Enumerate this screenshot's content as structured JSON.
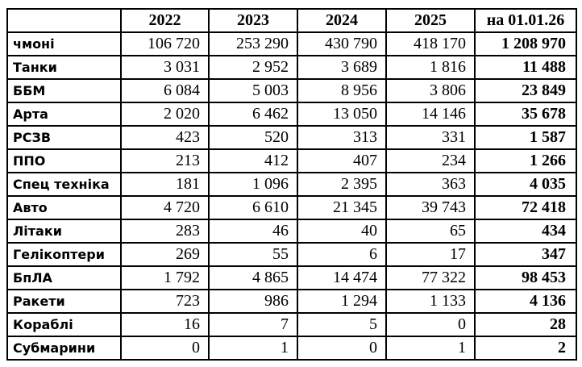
{
  "page": {
    "background_color": "#ffffff",
    "border_color": "#000000",
    "text_color": "#000000"
  },
  "table": {
    "header": {
      "corner": "",
      "columns": [
        "2022",
        "2023",
        "2024",
        "2025",
        "на 01.01.26"
      ]
    },
    "rows": [
      {
        "label": "чмоні",
        "values": [
          "106 720",
          "253 290",
          "430 790",
          "418 170",
          "1 208 970"
        ]
      },
      {
        "label": "Танки",
        "values": [
          "3 031",
          "2 952",
          "3 689",
          "1 816",
          "11 488"
        ]
      },
      {
        "label": "ББМ",
        "values": [
          "6 084",
          "5 003",
          "8 956",
          "3 806",
          "23 849"
        ]
      },
      {
        "label": "Арта",
        "values": [
          "2 020",
          "6 462",
          "13 050",
          "14 146",
          "35 678"
        ]
      },
      {
        "label": "РСЗВ",
        "values": [
          "423",
          "520",
          "313",
          "331",
          "1 587"
        ]
      },
      {
        "label": "ППО",
        "values": [
          "213",
          "412",
          "407",
          "234",
          "1 266"
        ]
      },
      {
        "label": "Спец техніка",
        "values": [
          "181",
          "1 096",
          "2 395",
          "363",
          "4 035"
        ]
      },
      {
        "label": "Авто",
        "values": [
          "4 720",
          "6 610",
          "21 345",
          "39 743",
          "72 418"
        ]
      },
      {
        "label": "Літаки",
        "values": [
          "283",
          "46",
          "40",
          "65",
          "434"
        ]
      },
      {
        "label": "Гелікоптери",
        "values": [
          "269",
          "55",
          "6",
          "17",
          "347"
        ]
      },
      {
        "label": "БпЛА",
        "values": [
          "1 792",
          "4 865",
          "14 474",
          "77 322",
          "98 453"
        ]
      },
      {
        "label": "Ракети",
        "values": [
          "723",
          "986",
          "1 294",
          "1 133",
          "4 136"
        ]
      },
      {
        "label": "Кораблі",
        "values": [
          "16",
          "7",
          "5",
          "0",
          "28"
        ]
      },
      {
        "label": "Субмарини",
        "values": [
          "0",
          "1",
          "0",
          "1",
          "2"
        ]
      }
    ]
  },
  "chart_data": {
    "type": "table",
    "columns": [
      "2022",
      "2023",
      "2024",
      "2025",
      "на 01.01.26"
    ],
    "rows": [
      {
        "label": "чмоні",
        "values": [
          106720,
          253290,
          430790,
          418170,
          1208970
        ]
      },
      {
        "label": "Танки",
        "values": [
          3031,
          2952,
          3689,
          1816,
          11488
        ]
      },
      {
        "label": "ББМ",
        "values": [
          6084,
          5003,
          8956,
          3806,
          23849
        ]
      },
      {
        "label": "Арта",
        "values": [
          2020,
          6462,
          13050,
          14146,
          35678
        ]
      },
      {
        "label": "РСЗВ",
        "values": [
          423,
          520,
          313,
          331,
          1587
        ]
      },
      {
        "label": "ППО",
        "values": [
          213,
          412,
          407,
          234,
          1266
        ]
      },
      {
        "label": "Спец техніка",
        "values": [
          181,
          1096,
          2395,
          363,
          4035
        ]
      },
      {
        "label": "Авто",
        "values": [
          4720,
          6610,
          21345,
          39743,
          72418
        ]
      },
      {
        "label": "Літаки",
        "values": [
          283,
          46,
          40,
          65,
          434
        ]
      },
      {
        "label": "Гелікоптери",
        "values": [
          269,
          55,
          6,
          17,
          347
        ]
      },
      {
        "label": "БпЛА",
        "values": [
          1792,
          4865,
          14474,
          77322,
          98453
        ]
      },
      {
        "label": "Ракети",
        "values": [
          723,
          986,
          1294,
          1133,
          4136
        ]
      },
      {
        "label": "Кораблі",
        "values": [
          16,
          7,
          5,
          0,
          28
        ]
      },
      {
        "label": "Субмарини",
        "values": [
          0,
          1,
          0,
          1,
          2
        ]
      }
    ],
    "notes": "last column is cumulative total as of 01.01.26; grid on; all cells bordered"
  }
}
